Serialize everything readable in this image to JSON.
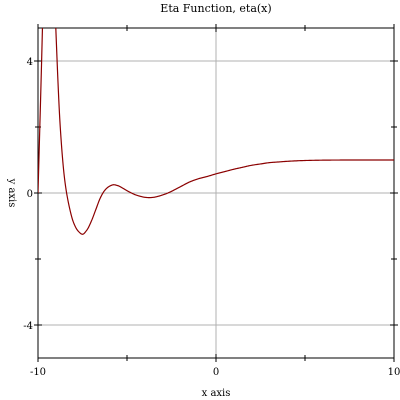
{
  "chart_data": {
    "type": "line",
    "title": "Eta Function, eta(x)",
    "xlabel": "x axis",
    "ylabel": "y axis",
    "xlim": [
      -10,
      10
    ],
    "ylim": [
      -5,
      5
    ],
    "x_major_ticks": [
      -10,
      0,
      10
    ],
    "x_minor_ticks": [
      -5,
      5
    ],
    "y_major_ticks": [
      -4,
      0,
      4
    ],
    "y_minor_ticks": [
      -2,
      2
    ],
    "grid": true,
    "series": [
      {
        "color": "#8b0000",
        "x": [
          -10,
          -9.75,
          -9.5,
          -9.25,
          -9.0,
          -8.75,
          -8.5,
          -8.25,
          -8.0,
          -7.75,
          -7.5,
          -7.25,
          -7.0,
          -6.75,
          -6.5,
          -6.25,
          -6.0,
          -5.75,
          -5.5,
          -5.25,
          -5.0,
          -4.75,
          -4.5,
          -4.25,
          -4.0,
          -3.75,
          -3.5,
          -3.25,
          -3.0,
          -2.75,
          -2.5,
          -2.25,
          -2.0,
          -1.5,
          -1.0,
          -0.5,
          0,
          0.5,
          1,
          1.5,
          2,
          2.5,
          3,
          3.5,
          4,
          5,
          6,
          7,
          8,
          9,
          10
        ],
        "y": [
          0,
          5,
          11,
          9,
          5,
          2.0,
          0.4,
          -0.4,
          -0.9,
          -1.15,
          -1.25,
          -1.12,
          -0.85,
          -0.5,
          -0.15,
          0.08,
          0.2,
          0.25,
          0.22,
          0.15,
          0.07,
          0.0,
          -0.06,
          -0.1,
          -0.13,
          -0.14,
          -0.13,
          -0.1,
          -0.06,
          -0.01,
          0.05,
          0.12,
          0.19,
          0.33,
          0.43,
          0.5,
          0.58,
          0.65,
          0.72,
          0.78,
          0.84,
          0.88,
          0.92,
          0.94,
          0.96,
          0.985,
          0.995,
          0.999,
          1.0,
          1.0,
          1.0
        ]
      }
    ]
  }
}
